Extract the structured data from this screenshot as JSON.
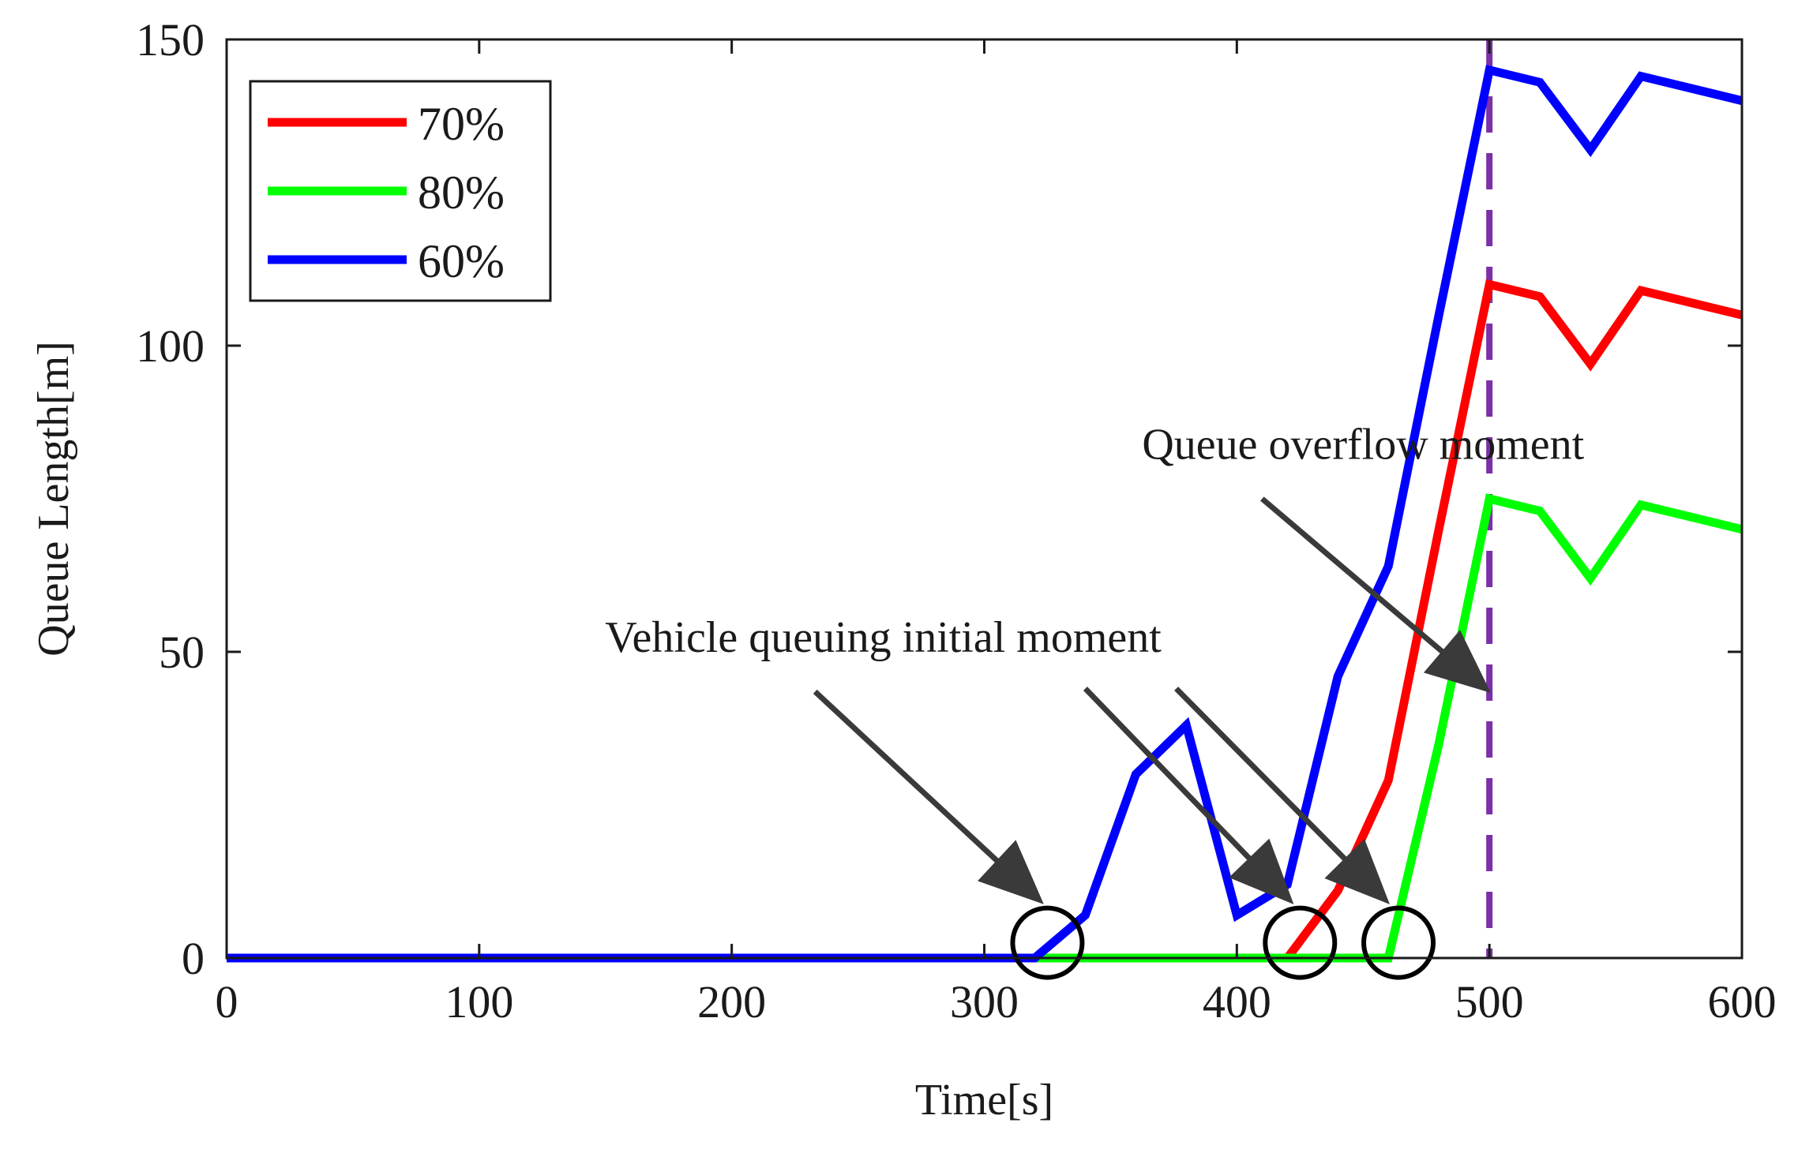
{
  "chart_data": {
    "type": "line",
    "title": "",
    "xlabel": "Time[s]",
    "ylabel": "Queue Length[m]",
    "xlim": [
      0,
      600
    ],
    "ylim": [
      0,
      150
    ],
    "xticks": [
      0,
      100,
      200,
      300,
      400,
      500,
      600
    ],
    "yticks": [
      0,
      50,
      100,
      150
    ],
    "xtick_labels": [
      "0",
      "100",
      "200",
      "300",
      "400",
      "500",
      "600"
    ],
    "ytick_labels": [
      "0",
      "50",
      "100",
      "150"
    ],
    "grid": false,
    "legend_position": "top-left",
    "series": [
      {
        "name": "70%",
        "color": "#ff0000",
        "x": [
          0,
          420,
          440,
          460,
          480,
          500,
          520,
          540,
          560,
          600
        ],
        "y": [
          0,
          0,
          11,
          29,
          70,
          110,
          108,
          97,
          109,
          105
        ]
      },
      {
        "name": "80%",
        "color": "#00ff00",
        "x": [
          0,
          460,
          480,
          500,
          520,
          540,
          560,
          600
        ],
        "y": [
          0,
          0,
          35,
          75,
          73,
          62,
          74,
          70
        ]
      },
      {
        "name": "60%",
        "color": "#0000ff",
        "x": [
          0,
          320,
          340,
          360,
          380,
          400,
          420,
          440,
          460,
          480,
          500,
          520,
          540,
          560,
          600
        ],
        "y": [
          0,
          0,
          7,
          30,
          38,
          7,
          12,
          46,
          64,
          105,
          145,
          143,
          132,
          144,
          140
        ]
      }
    ],
    "reference_line": {
      "axis": "x",
      "value": 500,
      "color": "#7b2fa8",
      "style": "dashed"
    },
    "markers": [
      {
        "label": "60% start",
        "x": 325,
        "y": 2.5
      },
      {
        "label": "70% start",
        "x": 425,
        "y": 2.5
      },
      {
        "label": "80% start",
        "x": 464,
        "y": 2.5
      }
    ],
    "annotations": [
      {
        "text": "Queue overflow moment",
        "text_x": 450,
        "text_y": 81.5,
        "arrows": [
          {
            "from_x": 410,
            "from_y": 75,
            "to_x": 500,
            "to_y": 43.5
          }
        ]
      },
      {
        "text": "Vehicle queuing initial moment",
        "text_x": 260,
        "text_y": 50,
        "arrows": [
          {
            "from_x": 233,
            "from_y": 43.5,
            "to_x": 323,
            "to_y": 9
          },
          {
            "from_x": 340,
            "from_y": 44,
            "to_x": 422,
            "to_y": 9
          },
          {
            "from_x": 376,
            "from_y": 44,
            "to_x": 460,
            "to_y": 9
          }
        ]
      }
    ]
  }
}
